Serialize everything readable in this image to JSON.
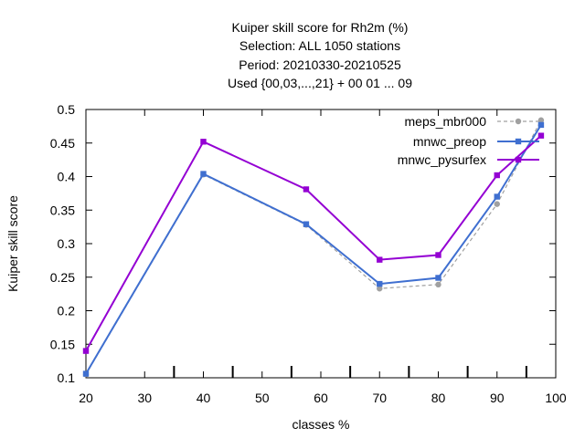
{
  "chart_data": {
    "type": "line",
    "title_lines": [
      "Kuiper skill score  for Rh2m (%)",
      "Selection: ALL    1050 stations",
      "Period: 20210330-20210525",
      "Used {00,03,...,21} + 00 01 ... 09"
    ],
    "xlabel": "classes %",
    "ylabel": "Kuiper skill score",
    "xlim": [
      20,
      100
    ],
    "ylim": [
      0.1,
      0.5
    ],
    "xticks": [
      20,
      30,
      40,
      50,
      60,
      70,
      80,
      90,
      100
    ],
    "xtick_labels": [
      "20",
      "30",
      "40",
      "50",
      "60",
      "70",
      "80",
      "90",
      "100"
    ],
    "yticks": [
      0.1,
      0.15,
      0.2,
      0.25,
      0.3,
      0.35,
      0.4,
      0.45,
      0.5
    ],
    "ytick_labels": [
      "0.1",
      "0.15",
      "0.2",
      "0.25",
      "0.3",
      "0.35",
      "0.4",
      "0.45",
      "0.5"
    ],
    "category_marks": [
      35,
      45,
      55,
      65,
      75,
      85,
      95
    ],
    "grid": false,
    "legend_position": "top-right",
    "series": [
      {
        "name": "meps_mbr000",
        "color": "#a0a0a0",
        "dashed": true,
        "marker": "circle",
        "x": [
          20,
          40,
          57.5,
          70,
          80,
          90,
          97.5
        ],
        "y": [
          0.105,
          0.403,
          0.328,
          0.233,
          0.239,
          0.359,
          0.484
        ]
      },
      {
        "name": "mnwc_preop",
        "color": "#3f6fd0",
        "dashed": false,
        "marker": "square",
        "x": [
          20,
          40,
          57.5,
          70,
          80,
          90,
          97.5
        ],
        "y": [
          0.106,
          0.404,
          0.329,
          0.24,
          0.249,
          0.37,
          0.477
        ]
      },
      {
        "name": "mnwc_pysurfex",
        "color": "#9400d3",
        "dashed": false,
        "marker": "square",
        "x": [
          20,
          40,
          57.5,
          70,
          80,
          90,
          97.5
        ],
        "y": [
          0.14,
          0.452,
          0.381,
          0.276,
          0.283,
          0.402,
          0.461
        ]
      }
    ]
  }
}
